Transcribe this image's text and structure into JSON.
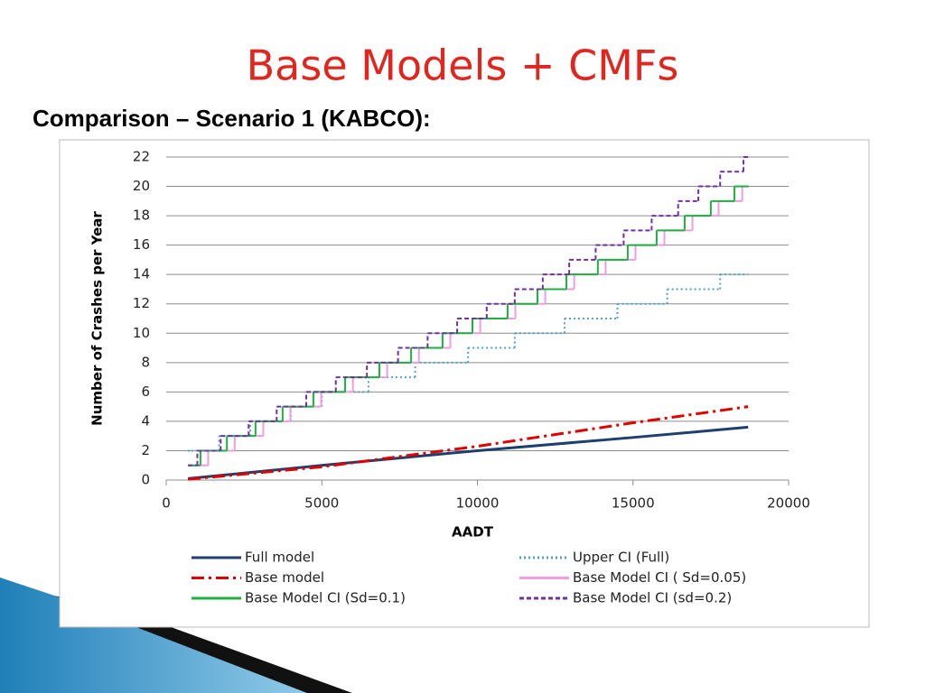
{
  "title": "Base Models + CMFs",
  "subtitle": "Comparison – Scenario 1 (KABCO):",
  "chart_data": {
    "type": "line",
    "xlabel": "AADT",
    "ylabel": "Number of Crashes per Year",
    "xlim": [
      0,
      20000
    ],
    "xticks": [
      0,
      5000,
      10000,
      15000,
      20000
    ],
    "ylim": [
      0,
      22
    ],
    "yticks": [
      0,
      2,
      4,
      6,
      8,
      10,
      12,
      14,
      16,
      18,
      20,
      22
    ],
    "grid": true,
    "series": [
      {
        "name": "Full model",
        "color": "#1f3f6e",
        "dash": "solid",
        "step": false,
        "x": [
          700,
          5000,
          10000,
          15000,
          18700
        ],
        "values": [
          0.1,
          1.0,
          2.0,
          2.9,
          3.6
        ]
      },
      {
        "name": "Upper CI (Full)",
        "color": "#4ea3c8",
        "dash": "dotted",
        "step": true,
        "x": [
          700,
          800,
          1700,
          2700,
          4000,
          5000,
          6500,
          8000,
          9700,
          11200,
          12800,
          14500,
          16100,
          17800,
          18700
        ],
        "values": [
          2,
          2,
          3,
          4,
          5,
          6,
          7,
          8,
          9,
          10,
          11,
          12,
          13,
          14,
          14
        ]
      },
      {
        "name": "Base model",
        "color": "#e00000",
        "dash": "dashdot",
        "step": false,
        "x": [
          700,
          5000,
          10000,
          15000,
          18700
        ],
        "values": [
          0.05,
          0.9,
          2.3,
          3.9,
          5.0
        ]
      },
      {
        "name": "Base Model CI ( Sd=0.05)",
        "color": "#f09ce0",
        "dash": "solid",
        "step": true,
        "x": [
          700,
          1350,
          2200,
          3120,
          3990,
          4980,
          6000,
          7100,
          8120,
          9130,
          10090,
          11220,
          12180,
          13110,
          14120,
          15080,
          16010,
          16910,
          17750,
          18510,
          18720
        ],
        "values": [
          1,
          2,
          3,
          4,
          5,
          6,
          7,
          8,
          9,
          10,
          11,
          12,
          13,
          14,
          15,
          16,
          17,
          18,
          19,
          20,
          20
        ]
      },
      {
        "name": "Base Model CI (Sd=0.1)",
        "color": "#1fb040",
        "dash": "solid",
        "step": true,
        "x": [
          700,
          1100,
          1950,
          2870,
          3740,
          4730,
          5750,
          6850,
          7870,
          8880,
          9840,
          10970,
          11930,
          12860,
          13870,
          14830,
          15760,
          16660,
          17500,
          18260,
          18720
        ],
        "values": [
          1,
          2,
          3,
          4,
          5,
          6,
          7,
          8,
          9,
          10,
          11,
          12,
          13,
          14,
          15,
          16,
          17,
          18,
          19,
          20,
          20
        ]
      },
      {
        "name": "Base Model CI (sd=0.2)",
        "color": "#7030a0",
        "dash": "dashed",
        "step": true,
        "x": [
          700,
          1000,
          1750,
          2650,
          3550,
          4500,
          5450,
          6450,
          7450,
          8400,
          9350,
          10300,
          11200,
          12100,
          12950,
          13800,
          14700,
          15600,
          16450,
          17100,
          17800,
          18550,
          18720
        ],
        "values": [
          1,
          2,
          3,
          4,
          5,
          6,
          7,
          8,
          9,
          10,
          11,
          12,
          13,
          14,
          15,
          16,
          17,
          18,
          19,
          20,
          21,
          22,
          22
        ]
      }
    ]
  }
}
